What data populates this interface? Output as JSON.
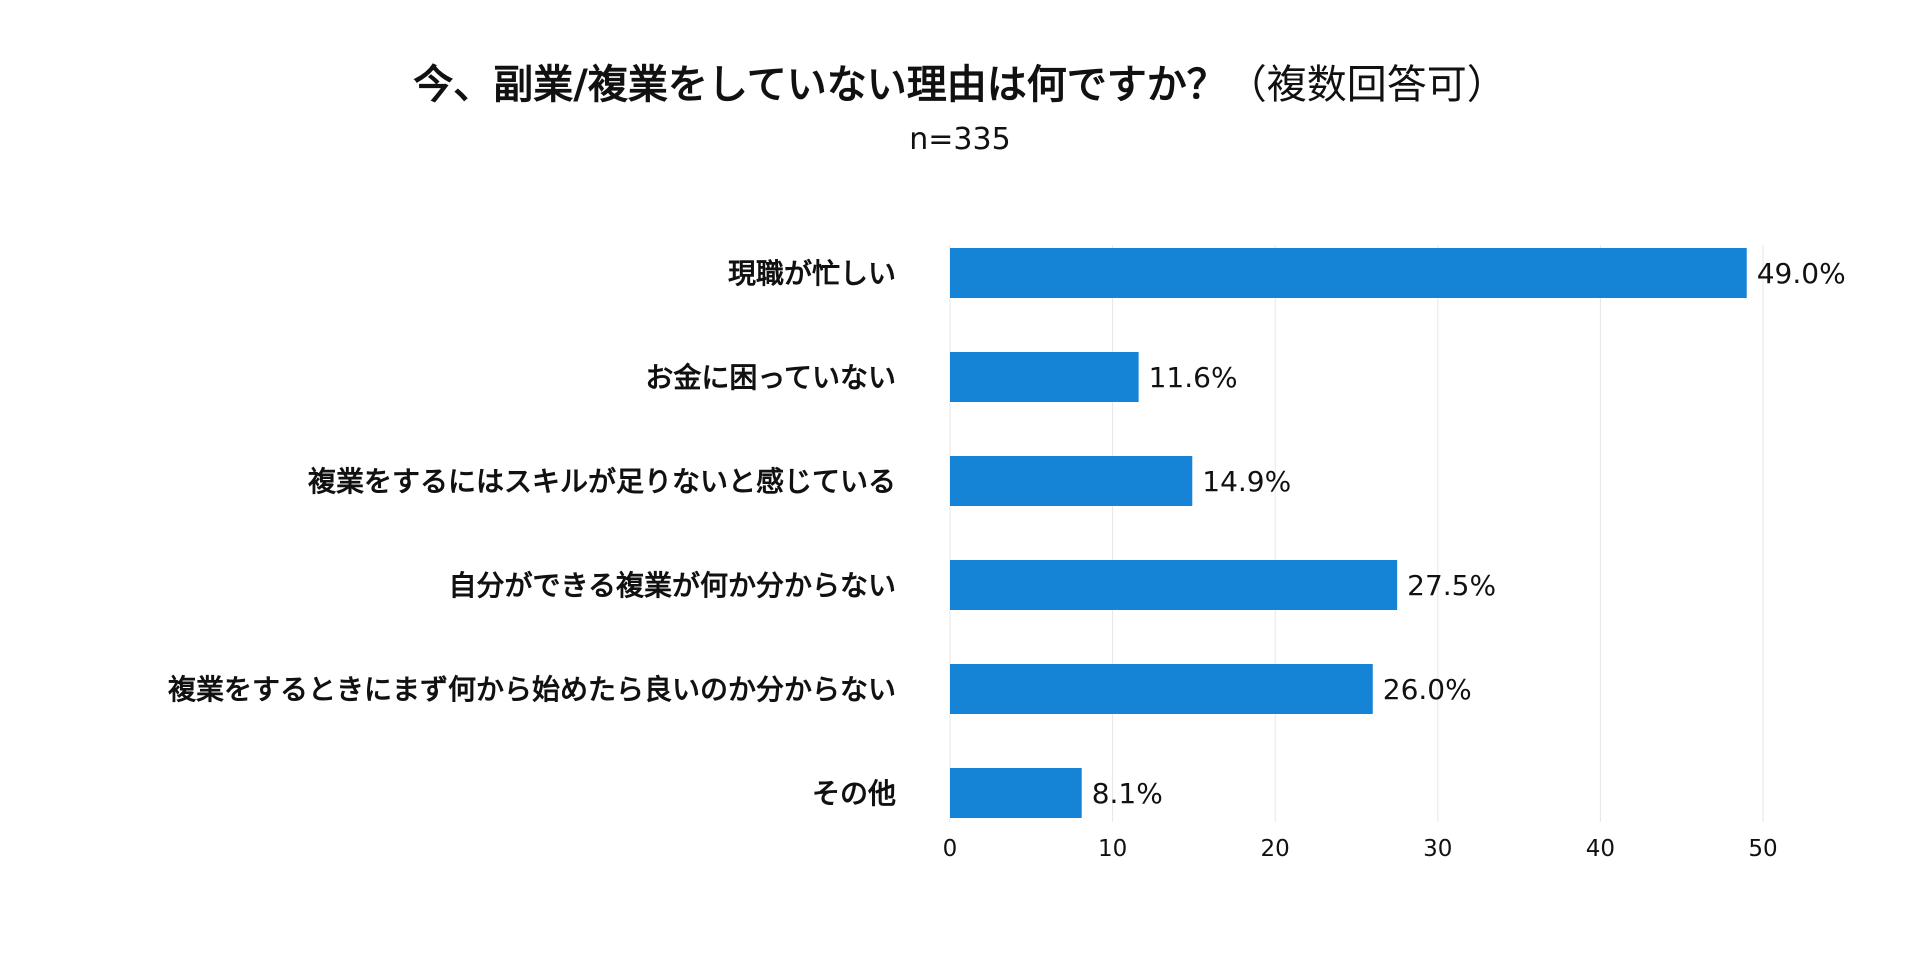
{
  "chart_data": {
    "type": "bar",
    "orientation": "horizontal",
    "title": "今、副業/複業をしていない理由は何ですか？",
    "title_note": "（複数回答可）",
    "subtitle": "n=335",
    "categories": [
      "現職が忙しい",
      "お金に困っていない",
      "複業をするにはスキルが足りないと感じている",
      "自分ができる複業が何か分からない",
      "複業をするときにまず何から始めたら良いのか分からない",
      "その他"
    ],
    "values": [
      49.0,
      11.6,
      14.9,
      27.5,
      26.0,
      8.1
    ],
    "value_labels": [
      "49.0%",
      "11.6%",
      "14.9%",
      "27.5%",
      "26.0%",
      "8.1%"
    ],
    "xlim": [
      0,
      50
    ],
    "xticks": [
      0,
      10,
      20,
      30,
      40,
      50
    ],
    "grid": true,
    "bar_color": "#1583d6",
    "grid_color": "#e6e6e6"
  }
}
